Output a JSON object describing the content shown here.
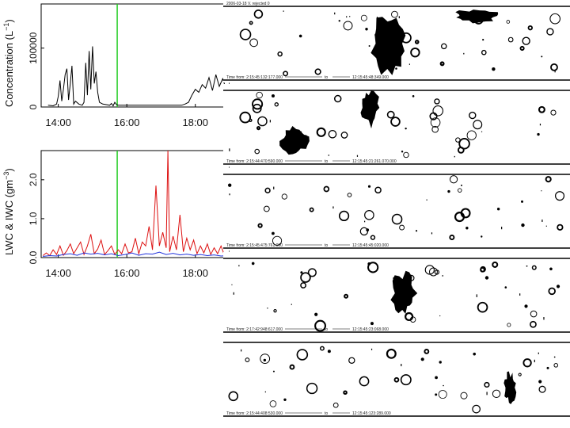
{
  "chart_data": [
    {
      "type": "line",
      "id": "conc",
      "ylabel": "Concentration (L⁻¹)",
      "ylabel_parts": {
        "main": "Concentration (L",
        "sup": "−1",
        "end": ")"
      },
      "yticks": [
        0,
        100000
      ],
      "ytick_labels": [
        "0",
        "100000"
      ],
      "ylim": [
        0,
        175000
      ],
      "xlim": [
        13.5,
        19.0
      ],
      "xticks": [
        14,
        16,
        18
      ],
      "xtick_labels": [
        "14:00",
        "16:00",
        "18:00"
      ],
      "marker_time": 15.72,
      "marker_color": "#22cc22",
      "series": [
        {
          "name": "concentration",
          "color": "#000000",
          "x": [
            13.7,
            13.85,
            13.95,
            14.0,
            14.05,
            14.1,
            14.15,
            14.2,
            14.25,
            14.3,
            14.35,
            14.4,
            14.45,
            14.5,
            14.6,
            14.7,
            14.75,
            14.8,
            14.85,
            14.9,
            14.95,
            15.0,
            15.05,
            15.1,
            15.15,
            15.2,
            15.3,
            15.4,
            15.5,
            15.55,
            15.6,
            15.65,
            15.7,
            15.75,
            17.6,
            17.7,
            17.8,
            17.9,
            18.0,
            18.1,
            18.2,
            18.3,
            18.4,
            18.5,
            18.6,
            18.7,
            18.8,
            18.9,
            19.0
          ],
          "y": [
            3000,
            2000,
            5000,
            18000,
            45000,
            10000,
            30000,
            55000,
            65000,
            12000,
            40000,
            70000,
            5000,
            10000,
            5000,
            3000,
            8000,
            75000,
            20000,
            95000,
            30000,
            103000,
            40000,
            60000,
            25000,
            8000,
            5000,
            4000,
            3000,
            6000,
            2000,
            8000,
            4000,
            3000,
            3000,
            5000,
            8000,
            20000,
            30000,
            25000,
            38000,
            32000,
            50000,
            28000,
            55000,
            35000,
            48000,
            30000,
            40000
          ]
        }
      ]
    },
    {
      "type": "line",
      "id": "wc",
      "ylabel_parts": {
        "main": "LWC & IWC (gm",
        "sup": "−3",
        "end": ")"
      },
      "yticks": [
        0.0,
        1.0,
        2.0
      ],
      "ytick_labels": [
        "0.0",
        "1.0",
        "2.0"
      ],
      "ylim": [
        0.0,
        2.75
      ],
      "xlim": [
        13.5,
        19.0
      ],
      "xticks": [
        14,
        16,
        18
      ],
      "xtick_labels": [
        "14:00",
        "16:00",
        "18:00"
      ],
      "marker_time": 15.72,
      "marker_color": "#22cc22",
      "series": [
        {
          "name": "LWC",
          "color": "#dd1111",
          "x": [
            13.55,
            13.65,
            13.75,
            13.85,
            13.95,
            14.05,
            14.15,
            14.25,
            14.35,
            14.45,
            14.55,
            14.65,
            14.75,
            14.85,
            14.95,
            15.05,
            15.15,
            15.25,
            15.35,
            15.45,
            15.55,
            15.65,
            15.75,
            15.85,
            15.95,
            16.05,
            16.15,
            16.25,
            16.35,
            16.45,
            16.55,
            16.65,
            16.75,
            16.85,
            16.95,
            17.05,
            17.15,
            17.2,
            17.25,
            17.35,
            17.45,
            17.55,
            17.65,
            17.75,
            17.85,
            17.95,
            18.05,
            18.15,
            18.25,
            18.35,
            18.45,
            18.55,
            18.65,
            18.75,
            18.85,
            18.95,
            19.0
          ],
          "y": [
            0.05,
            0.12,
            0.05,
            0.2,
            0.08,
            0.3,
            0.06,
            0.18,
            0.35,
            0.1,
            0.25,
            0.4,
            0.08,
            0.3,
            0.6,
            0.1,
            0.22,
            0.45,
            0.08,
            0.18,
            0.3,
            0.08,
            0.2,
            0.1,
            0.35,
            0.12,
            0.15,
            0.5,
            0.1,
            0.4,
            0.3,
            0.8,
            0.2,
            1.85,
            0.3,
            0.65,
            0.25,
            2.75,
            0.15,
            0.55,
            0.2,
            1.1,
            0.15,
            0.5,
            0.2,
            0.45,
            0.1,
            0.3,
            0.12,
            0.35,
            0.08,
            0.25,
            0.1,
            0.3,
            0.06,
            0.12,
            0.05
          ]
        },
        {
          "name": "IWC",
          "color": "#2233dd",
          "x": [
            13.55,
            13.75,
            13.95,
            14.15,
            14.35,
            14.55,
            14.75,
            14.95,
            15.15,
            15.35,
            15.55,
            15.75,
            15.95,
            16.15,
            16.35,
            16.55,
            16.75,
            16.95,
            17.15,
            17.35,
            17.55,
            17.75,
            17.95,
            18.15,
            18.35,
            18.55,
            18.75,
            18.95
          ],
          "y": [
            0.03,
            0.05,
            0.04,
            0.08,
            0.1,
            0.06,
            0.12,
            0.09,
            0.11,
            0.07,
            0.1,
            0.05,
            0.08,
            0.12,
            0.06,
            0.1,
            0.09,
            0.14,
            0.08,
            0.11,
            0.07,
            0.09,
            0.06,
            0.08,
            0.05,
            0.07,
            0.04,
            0.05
          ]
        }
      ]
    }
  ],
  "particle_strips": [
    {
      "header": "2006-03-18 V. rejected 0",
      "footer_time": "Time from: 2:15:45:132:177.000",
      "footer_to": "to",
      "footer_end": "12:15:45:48:349.000"
    },
    {
      "footer_time": "Time from: 2:15:44:470:590.000",
      "footer_to": "to",
      "footer_end": "12:15:45:21:261.070.000"
    },
    {
      "footer_time": "Time from: 2:15:45:475:761.000",
      "footer_to": "to",
      "footer_end": "12:15:45:45:020.000"
    },
    {
      "footer_time": "Time from: 2:17:42:948:617.000",
      "footer_to": "to",
      "footer_end": "12:15:45:23:068.000"
    },
    {
      "footer_time": "Time from: 2:15:44:408:530.000",
      "footer_to": "to",
      "footer_end": "12:15:45:123:289.000"
    }
  ]
}
